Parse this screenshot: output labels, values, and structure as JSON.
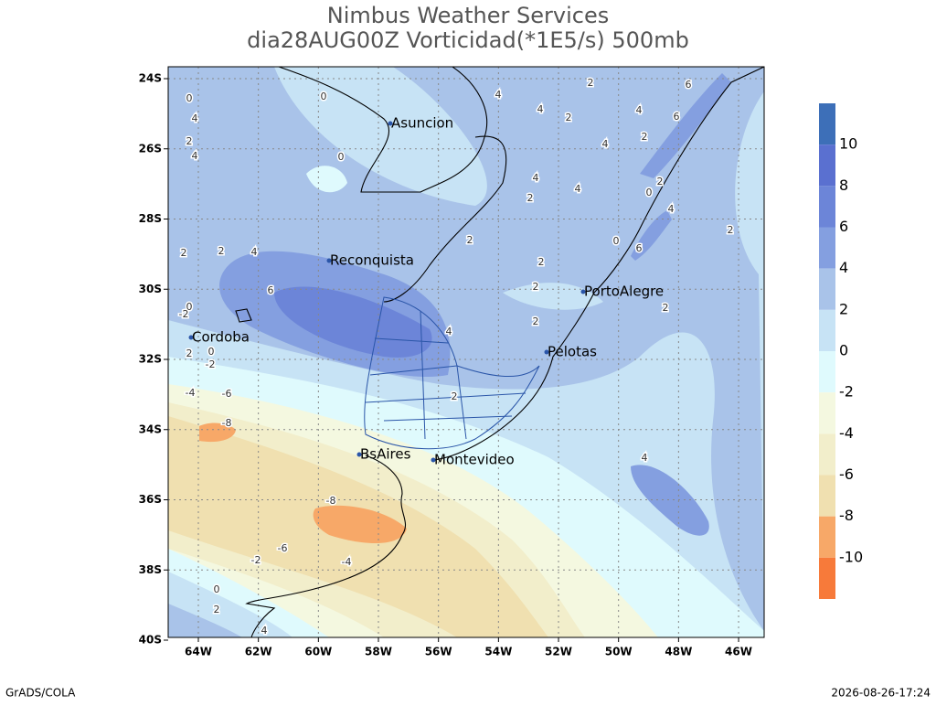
{
  "header": {
    "title": "Nimbus Weather Services",
    "subtitle": "dia28AUG00Z Vorticidad(*1E5/s) 500mb"
  },
  "map": {
    "lat_ticks": [
      "24S",
      "26S",
      "28S",
      "30S",
      "32S",
      "34S",
      "36S",
      "38S",
      "40S"
    ],
    "lon_ticks": [
      "64W",
      "62W",
      "60W",
      "58W",
      "56W",
      "54W",
      "52W",
      "50W",
      "48W",
      "46W"
    ],
    "grid": true,
    "cities": [
      "Asuncion",
      "Reconquista",
      "Cordoba",
      "PortoAlegre",
      "Pelotas",
      "BsAires",
      "Montevideo"
    ],
    "contour_labels": [
      0,
      4,
      2,
      4,
      0,
      0,
      4,
      2,
      4,
      2,
      4,
      2,
      6,
      6,
      4,
      2,
      4,
      2,
      6,
      2,
      2,
      2,
      2,
      4,
      2,
      2,
      2,
      0,
      6,
      4,
      0,
      2,
      0,
      -2,
      0,
      -2,
      2,
      -4,
      -6,
      -8,
      -8,
      -6,
      -2,
      -4,
      0,
      2,
      4,
      4,
      2,
      4,
      4
    ]
  },
  "colorbar": {
    "levels": [
      10,
      8,
      6,
      4,
      2,
      0,
      -2,
      -4,
      -6,
      -8,
      -10
    ],
    "colors": [
      "#3d6fb8",
      "#5a70d0",
      "#6c85d8",
      "#849fe0",
      "#a9c3e9",
      "#c7e3f5",
      "#dffafd",
      "#f4f8e0",
      "#f2eecb",
      "#f0e0b0",
      "#f7a868",
      "#f77a3a"
    ]
  },
  "footer": {
    "left": "GrADS/COLA",
    "right": "2026-08-26-17:24"
  }
}
